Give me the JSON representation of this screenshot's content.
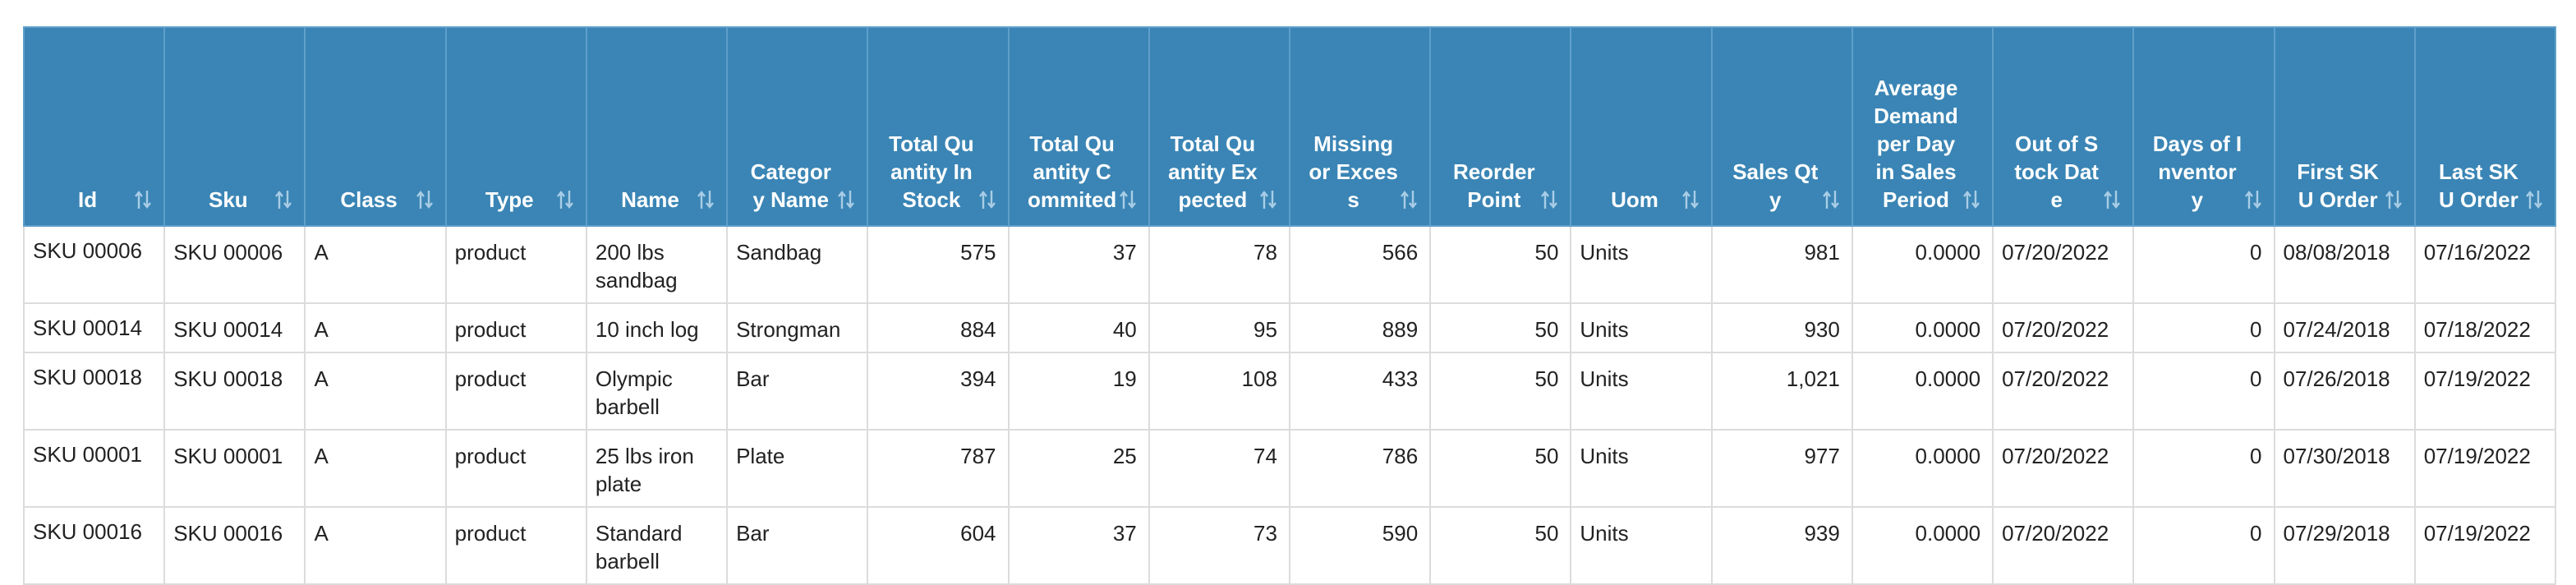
{
  "table": {
    "headers": [
      "Id",
      "Sku",
      "Class",
      "Type",
      "Name",
      "Category Name",
      "Total Quantity In Stock",
      "Total Quantity Commited",
      "Total Quantity Expected",
      "Missing or Excess",
      "Reorder Point",
      "Uom",
      "Sales Qty",
      "Average Demand per Day in Sales Period",
      "Out of Stock Date",
      "Days of Inventory",
      "First SKU Order",
      "Last SKU Order"
    ],
    "rows": [
      [
        "SKU 00006",
        "SKU 00006",
        "A",
        "product",
        "200 lbs sandbag",
        "Sandbag",
        "575",
        "37",
        "78",
        "566",
        "50",
        "Units",
        "981",
        "0.0000",
        "07/20/2022",
        "0",
        "08/08/2018",
        "07/16/2022"
      ],
      [
        "SKU 00014",
        "SKU 00014",
        "A",
        "product",
        "10 inch log",
        "Strongman",
        "884",
        "40",
        "95",
        "889",
        "50",
        "Units",
        "930",
        "0.0000",
        "07/20/2022",
        "0",
        "07/24/2018",
        "07/18/2022"
      ],
      [
        "SKU 00018",
        "SKU 00018",
        "A",
        "product",
        "Olympic barbell",
        "Bar",
        "394",
        "19",
        "108",
        "433",
        "50",
        "Units",
        "1,021",
        "0.0000",
        "07/20/2022",
        "0",
        "07/26/2018",
        "07/19/2022"
      ],
      [
        "SKU 00001",
        "SKU 00001",
        "A",
        "product",
        "25 lbs iron plate",
        "Plate",
        "787",
        "25",
        "74",
        "786",
        "50",
        "Units",
        "977",
        "0.0000",
        "07/20/2022",
        "0",
        "07/30/2018",
        "07/19/2022"
      ],
      [
        "SKU 00016",
        "SKU 00016",
        "A",
        "product",
        "Standard barbell",
        "Bar",
        "604",
        "37",
        "73",
        "590",
        "50",
        "Units",
        "939",
        "0.0000",
        "07/20/2022",
        "0",
        "07/29/2018",
        "07/19/2022"
      ]
    ]
  }
}
